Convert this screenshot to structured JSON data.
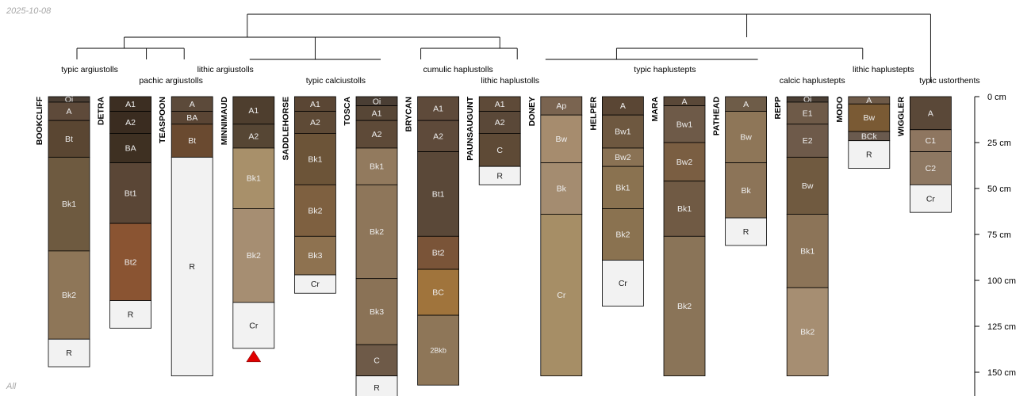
{
  "date": "2025-10-08",
  "panel_label": "All",
  "depth_axis": {
    "unit": "cm",
    "ticks": [
      0,
      25,
      50,
      75,
      100,
      125,
      150
    ]
  },
  "colors": {
    "A": "#5a4838",
    "A1": "#4e3c2c",
    "A2": "#4a3a2c",
    "Oi": "#4a3e34",
    "BA": "#3e3020",
    "Bt": "#6a4c30",
    "Bt1": "#5a4838",
    "Bt2": "#8a5430",
    "Bk1": "#7a6244",
    "Bk2": "#a88a6c",
    "Bk3": "#8a7050",
    "C": "#6e5a48",
    "R": "#f2f2f2",
    "Cr": "#f2f2f2"
  },
  "profiles": [
    {
      "id": "BOOKCLIFF",
      "horizons": [
        {
          "name": "Oi",
          "top": 0,
          "bottom": 3,
          "color": "#4a3e34"
        },
        {
          "name": "A",
          "top": 3,
          "bottom": 13,
          "color": "#5e4a3a"
        },
        {
          "name": "Bt",
          "top": 13,
          "bottom": 33,
          "color": "#5a4632"
        },
        {
          "name": "Bk1",
          "top": 33,
          "bottom": 84,
          "color": "#6e5a40"
        },
        {
          "name": "Bk2",
          "top": 84,
          "bottom": 132,
          "color": "#8e7658"
        },
        {
          "name": "R",
          "top": 132,
          "bottom": 147,
          "color": "#f2f2f2"
        }
      ]
    },
    {
      "id": "DETRA",
      "horizons": [
        {
          "name": "A1",
          "top": 0,
          "bottom": 8,
          "color": "#3c2e22"
        },
        {
          "name": "A2",
          "top": 8,
          "bottom": 20,
          "color": "#3a2c20"
        },
        {
          "name": "BA",
          "top": 20,
          "bottom": 36,
          "color": "#3e3022"
        },
        {
          "name": "Bt1",
          "top": 36,
          "bottom": 69,
          "color": "#5a4636"
        },
        {
          "name": "Bt2",
          "top": 69,
          "bottom": 111,
          "color": "#8a5432"
        },
        {
          "name": "R",
          "top": 111,
          "bottom": 126,
          "color": "#f2f2f2"
        }
      ]
    },
    {
      "id": "TEASPOON",
      "horizons": [
        {
          "name": "A",
          "top": 0,
          "bottom": 8,
          "color": "#5c4a3a"
        },
        {
          "name": "BA",
          "top": 8,
          "bottom": 15,
          "color": "#5a4534"
        },
        {
          "name": "Bt",
          "top": 15,
          "bottom": 33,
          "color": "#6a4a30"
        },
        {
          "name": "R",
          "top": 33,
          "bottom": 152,
          "color": "#f2f2f2"
        }
      ]
    },
    {
      "id": "MINNIMAUD",
      "horizons": [
        {
          "name": "A1",
          "top": 0,
          "bottom": 15,
          "color": "#4e3e2e"
        },
        {
          "name": "A2",
          "top": 15,
          "bottom": 28,
          "color": "#564634"
        },
        {
          "name": "Bk1",
          "top": 28,
          "bottom": 61,
          "color": "#a8906a"
        },
        {
          "name": "Bk2",
          "top": 61,
          "bottom": 112,
          "color": "#a68e72"
        },
        {
          "name": "Cr",
          "top": 112,
          "bottom": 137,
          "color": "#f2f2f2"
        }
      ]
    },
    {
      "id": "SADDLEHORSE",
      "horizons": [
        {
          "name": "A1",
          "top": 0,
          "bottom": 8,
          "color": "#5a4634"
        },
        {
          "name": "A2",
          "top": 8,
          "bottom": 20,
          "color": "#5e4a36"
        },
        {
          "name": "Bk1",
          "top": 20,
          "bottom": 48,
          "color": "#6c5438"
        },
        {
          "name": "Bk2",
          "top": 48,
          "bottom": 76,
          "color": "#7e6040"
        },
        {
          "name": "Bk3",
          "top": 76,
          "bottom": 97,
          "color": "#8e7250"
        },
        {
          "name": "Cr",
          "top": 97,
          "bottom": 107,
          "color": "#f2f2f2"
        }
      ]
    },
    {
      "id": "TOSCA",
      "horizons": [
        {
          "name": "Oi",
          "top": 0,
          "bottom": 5,
          "color": "#4a3e34"
        },
        {
          "name": "A1",
          "top": 5,
          "bottom": 13,
          "color": "#574636"
        },
        {
          "name": "A2",
          "top": 13,
          "bottom": 28,
          "color": "#5e4a38"
        },
        {
          "name": "Bk1",
          "top": 28,
          "bottom": 48,
          "color": "#927a5e"
        },
        {
          "name": "Bk2",
          "top": 48,
          "bottom": 99,
          "color": "#8e765a"
        },
        {
          "name": "Bk3",
          "top": 99,
          "bottom": 135,
          "color": "#8a7256"
        },
        {
          "name": "C",
          "top": 135,
          "bottom": 152,
          "color": "#6e5a48"
        },
        {
          "name": "R",
          "top": 152,
          "bottom": 165,
          "color": "#f2f2f2"
        }
      ]
    },
    {
      "id": "BRYCAN",
      "horizons": [
        {
          "name": "A1",
          "top": 0,
          "bottom": 13,
          "color": "#5e4a3a"
        },
        {
          "name": "A2",
          "top": 13,
          "bottom": 30,
          "color": "#5e4a3a"
        },
        {
          "name": "Bt1",
          "top": 30,
          "bottom": 76,
          "color": "#5a4838"
        },
        {
          "name": "Bt2",
          "top": 76,
          "bottom": 94,
          "color": "#7a5438"
        },
        {
          "name": "BC",
          "top": 94,
          "bottom": 119,
          "color": "#a0743c"
        },
        {
          "name": "2Bkb",
          "top": 119,
          "bottom": 157,
          "color": "#8e7658"
        }
      ]
    },
    {
      "id": "PAUNSAUGUNT",
      "horizons": [
        {
          "name": "A1",
          "top": 0,
          "bottom": 8,
          "color": "#5e4a38"
        },
        {
          "name": "A2",
          "top": 8,
          "bottom": 20,
          "color": "#5a4838"
        },
        {
          "name": "C",
          "top": 20,
          "bottom": 38,
          "color": "#5e4a36"
        },
        {
          "name": "R",
          "top": 38,
          "bottom": 48,
          "color": "#f2f2f2"
        }
      ]
    },
    {
      "id": "DONEY",
      "horizons": [
        {
          "name": "Ap",
          "top": 0,
          "bottom": 10,
          "color": "#7a6450"
        },
        {
          "name": "Bw",
          "top": 10,
          "bottom": 36,
          "color": "#a68c6e"
        },
        {
          "name": "Bk",
          "top": 36,
          "bottom": 64,
          "color": "#a48c70"
        },
        {
          "name": "Cr",
          "top": 64,
          "bottom": 152,
          "color": "#a68e66"
        }
      ]
    },
    {
      "id": "HELPER",
      "horizons": [
        {
          "name": "A",
          "top": 0,
          "bottom": 10,
          "color": "#5a4634"
        },
        {
          "name": "Bw1",
          "top": 10,
          "bottom": 28,
          "color": "#6e5840"
        },
        {
          "name": "Bw2",
          "top": 28,
          "bottom": 38,
          "color": "#8a7254"
        },
        {
          "name": "Bk1",
          "top": 38,
          "bottom": 61,
          "color": "#8a7250"
        },
        {
          "name": "Bk2",
          "top": 61,
          "bottom": 89,
          "color": "#8a7250"
        },
        {
          "name": "Cr",
          "top": 89,
          "bottom": 114,
          "color": "#f2f2f2"
        }
      ]
    },
    {
      "id": "MARA",
      "horizons": [
        {
          "name": "A",
          "top": 0,
          "bottom": 5,
          "color": "#5a4838"
        },
        {
          "name": "Bw1",
          "top": 5,
          "bottom": 25,
          "color": "#6e5a48"
        },
        {
          "name": "Bw2",
          "top": 25,
          "bottom": 46,
          "color": "#7a5e42"
        },
        {
          "name": "Bk1",
          "top": 46,
          "bottom": 76,
          "color": "#705a44"
        },
        {
          "name": "Bk2",
          "top": 76,
          "bottom": 152,
          "color": "#8a7458"
        }
      ]
    },
    {
      "id": "PATHEAD",
      "horizons": [
        {
          "name": "A",
          "top": 0,
          "bottom": 8,
          "color": "#6e5c48"
        },
        {
          "name": "Bw",
          "top": 8,
          "bottom": 36,
          "color": "#8e7658"
        },
        {
          "name": "Bk",
          "top": 36,
          "bottom": 66,
          "color": "#8c7458"
        },
        {
          "name": "R",
          "top": 66,
          "bottom": 81,
          "color": "#f2f2f2"
        }
      ]
    },
    {
      "id": "REPP",
      "horizons": [
        {
          "name": "Oi",
          "top": 0,
          "bottom": 3,
          "color": "#4a3e34"
        },
        {
          "name": "E1",
          "top": 3,
          "bottom": 15,
          "color": "#6e5a48"
        },
        {
          "name": "E2",
          "top": 15,
          "bottom": 33,
          "color": "#6e5a4a"
        },
        {
          "name": "Bw",
          "top": 33,
          "bottom": 64,
          "color": "#705a40"
        },
        {
          "name": "Bk1",
          "top": 64,
          "bottom": 104,
          "color": "#8c7458"
        },
        {
          "name": "Bk2",
          "top": 104,
          "bottom": 152,
          "color": "#a68e72"
        }
      ]
    },
    {
      "id": "MODO",
      "horizons": [
        {
          "name": "A",
          "top": 0,
          "bottom": 4,
          "color": "#6e5a48"
        },
        {
          "name": "Bw",
          "top": 4,
          "bottom": 19,
          "color": "#7a5a34"
        },
        {
          "name": "BCk",
          "top": 19,
          "bottom": 24,
          "color": "#6a5a4e"
        },
        {
          "name": "R",
          "top": 24,
          "bottom": 39,
          "color": "#f2f2f2"
        }
      ]
    },
    {
      "id": "WIGGLER",
      "horizons": [
        {
          "name": "A",
          "top": 0,
          "bottom": 18,
          "color": "#5a4838"
        },
        {
          "name": "C1",
          "top": 18,
          "bottom": 30,
          "color": "#8e7660"
        },
        {
          "name": "C2",
          "top": 30,
          "bottom": 48,
          "color": "#8e7862"
        },
        {
          "name": "Cr",
          "top": 48,
          "bottom": 63,
          "color": "#f2f2f2"
        }
      ]
    }
  ],
  "markers": [
    {
      "profile": "MINNIMAUD",
      "color": "#e00000"
    }
  ],
  "groups": [
    {
      "label": "typic argiustolls",
      "members": [
        "BOOKCLIFF",
        "DETRA"
      ],
      "label_row": 1
    },
    {
      "label": "pachic argiustolls",
      "members": [
        "DETRA",
        "TEASPOON"
      ],
      "label_row": 2
    },
    {
      "label": "lithic argiustolls",
      "members": [
        "TEASPOON"
      ],
      "label_row": 1
    },
    {
      "label": "typic calciustolls",
      "members": [
        "MINNIMAUD",
        "SADDLEHORSE",
        "TOSCA"
      ],
      "label_row": 2
    },
    {
      "label": "cumulic haplustolls",
      "members": [
        "BRYCAN"
      ],
      "label_row": 1
    },
    {
      "label": "lithic haplustolls",
      "members": [
        "PAUNSAUGUNT"
      ],
      "label_row": 2
    },
    {
      "label": "typic haplustepts",
      "members": [
        "DONEY",
        "HELPER",
        "MARA",
        "PATHEAD"
      ],
      "label_row": 1
    },
    {
      "label": "calcic haplustepts",
      "members": [
        "REPP"
      ],
      "label_row": 2
    },
    {
      "label": "lithic haplustepts",
      "members": [
        "MODO"
      ],
      "label_row": 1
    },
    {
      "label": "typic ustorthents",
      "members": [
        "WIGGLER"
      ],
      "label_row": 2
    }
  ]
}
